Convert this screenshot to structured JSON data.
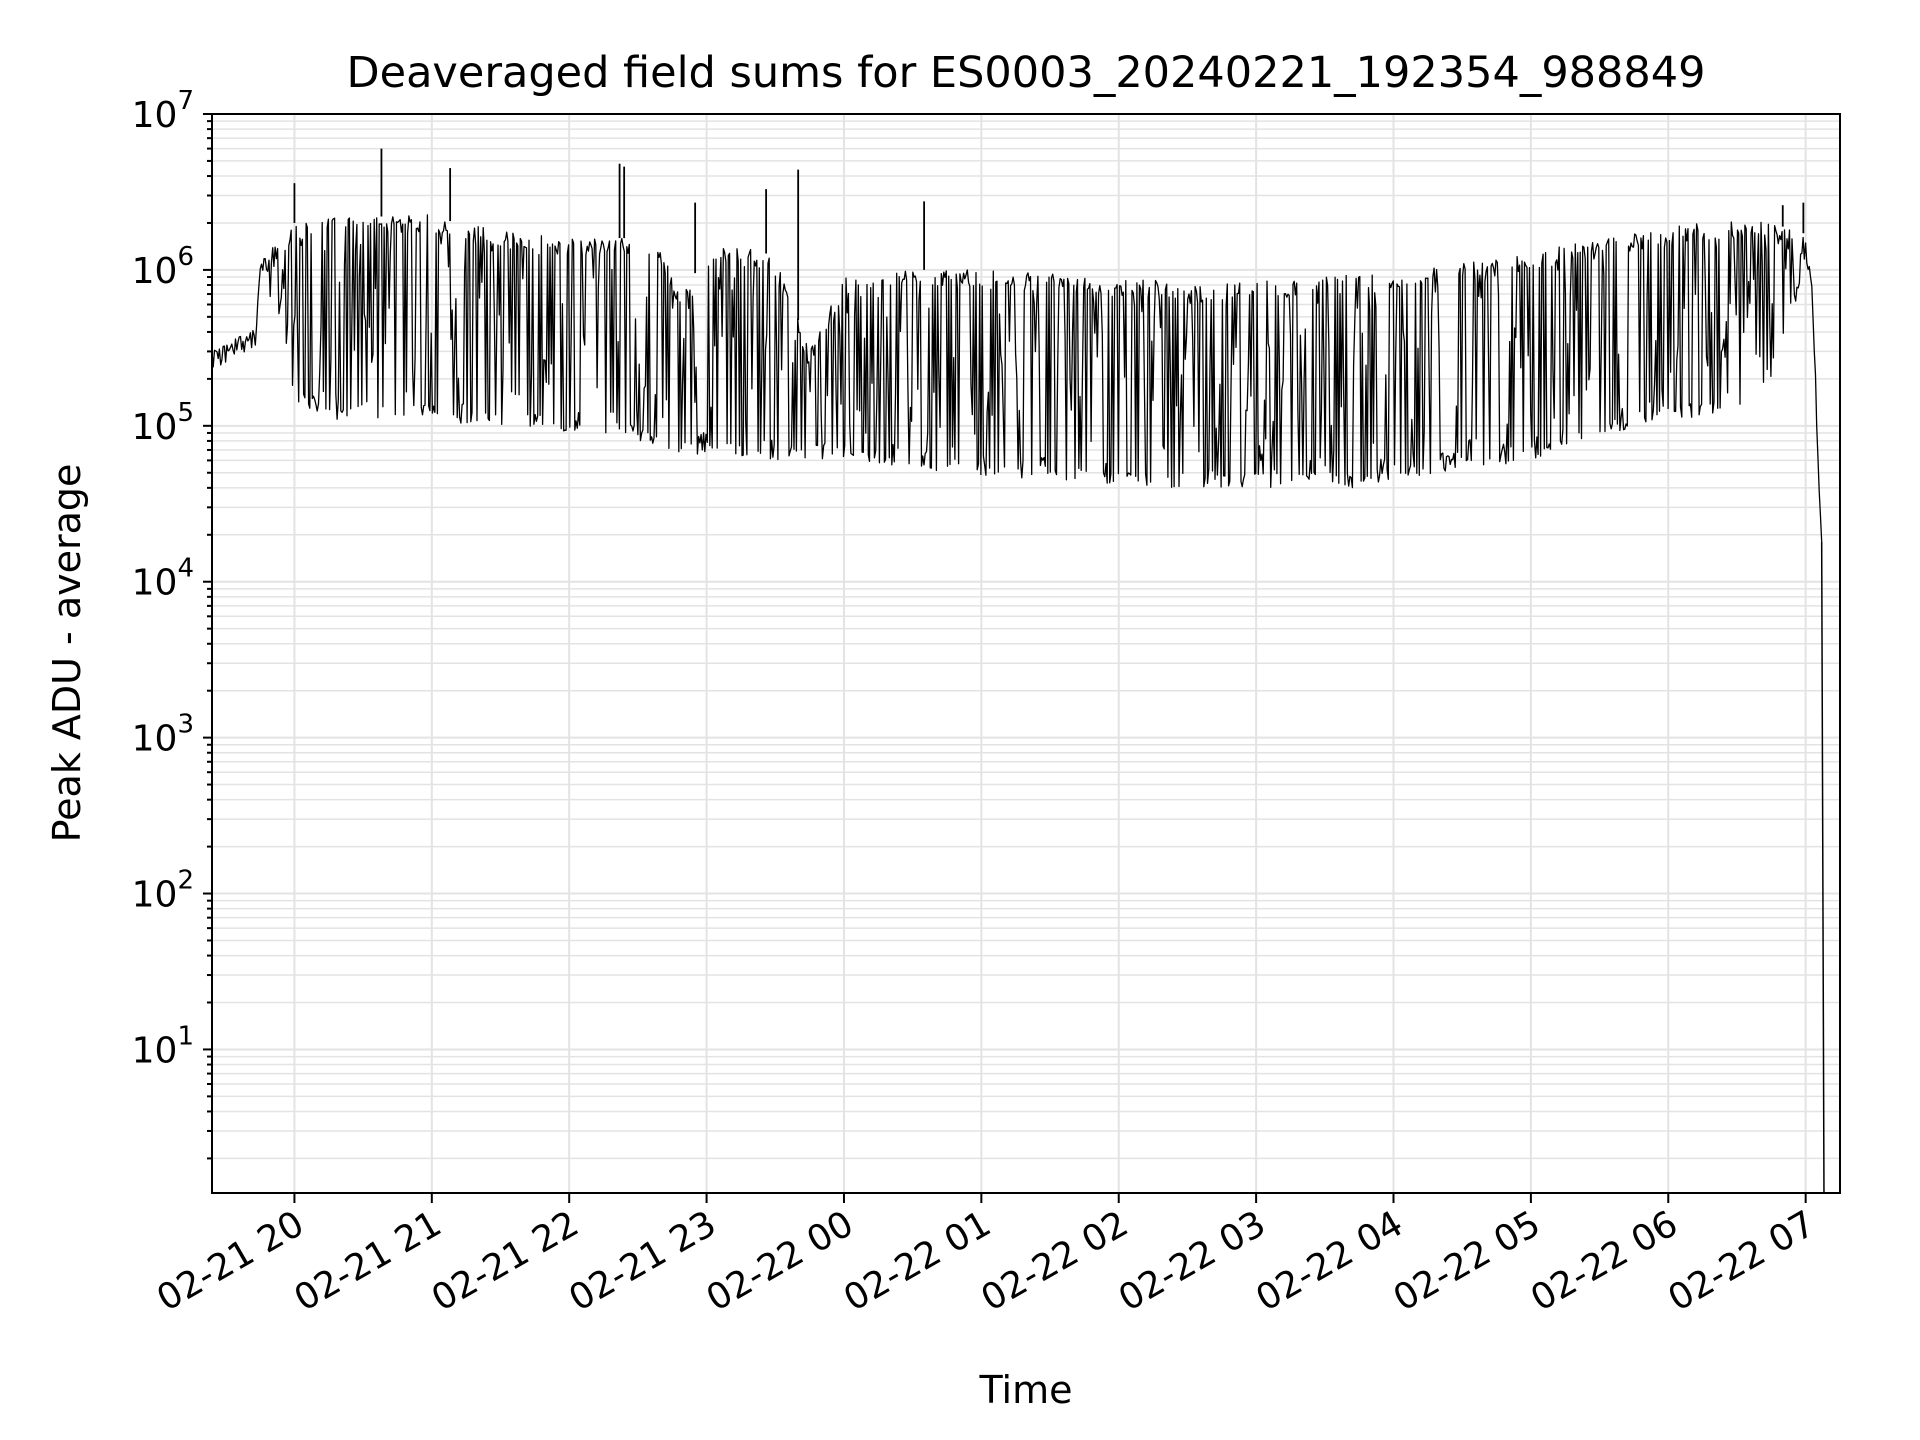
{
  "chart_data": {
    "type": "line",
    "title": "Deaveraged field sums for ES0003_20240221_192354_988849",
    "xlabel": "Time",
    "ylabel": "Peak ADU - average",
    "yscale": "log",
    "ylim": [
      1.2,
      10000000
    ],
    "xlim": [
      "2024-02-21 19:24",
      "2024-02-22 07:15"
    ],
    "grid": true,
    "line_color": "#000000",
    "grid_color": "#e3e3e3",
    "x_tick_labels": [
      "02-21 20",
      "02-21 21",
      "02-21 22",
      "02-21 23",
      "02-22 00",
      "02-22 01",
      "02-22 02",
      "02-22 03",
      "02-22 04",
      "02-22 05",
      "02-22 06",
      "02-22 07"
    ],
    "y_tick_labels": [
      {
        "base": "10",
        "exp": "1"
      },
      {
        "base": "10",
        "exp": "2"
      },
      {
        "base": "10",
        "exp": "3"
      },
      {
        "base": "10",
        "exp": "4"
      },
      {
        "base": "10",
        "exp": "5"
      },
      {
        "base": "10",
        "exp": "6"
      },
      {
        "base": "10",
        "exp": "7"
      }
    ],
    "series": [
      {
        "x": [
          "2024-02-21 19:24",
          "2024-02-21 19:36",
          "2024-02-21 19:43",
          "2024-02-21 19:45",
          "2024-02-21 19:53",
          "2024-02-21 20:00",
          "2024-02-21 20:10",
          "2024-02-21 20:20",
          "2024-02-21 20:30",
          "2024-02-21 20:37",
          "2024-02-21 20:45",
          "2024-02-21 21:00",
          "2024-02-21 21:10",
          "2024-02-21 21:20",
          "2024-02-21 21:30",
          "2024-02-21 21:45",
          "2024-02-21 22:00",
          "2024-02-21 22:15",
          "2024-02-21 22:30",
          "2024-02-21 22:40",
          "2024-02-21 22:50",
          "2024-02-21 23:00",
          "2024-02-21 23:15",
          "2024-02-21 23:30",
          "2024-02-21 23:45",
          "2024-02-22 00:00",
          "2024-02-22 00:15",
          "2024-02-22 00:30",
          "2024-02-22 00:45",
          "2024-02-22 01:00",
          "2024-02-22 01:30",
          "2024-02-22 02:00",
          "2024-02-22 02:20",
          "2024-02-22 02:30",
          "2024-02-22 03:00",
          "2024-02-22 03:30",
          "2024-02-22 03:45",
          "2024-02-22 04:00",
          "2024-02-22 04:30",
          "2024-02-22 05:00",
          "2024-02-22 05:30",
          "2024-02-22 06:00",
          "2024-02-22 06:30",
          "2024-02-22 06:45",
          "2024-02-22 07:00",
          "2024-02-22 07:03",
          "2024-02-22 07:05",
          "2024-02-22 07:07"
        ],
        "upper": [
          300000,
          380000,
          420000,
          1100000,
          1600000,
          2000000,
          2200000,
          2300000,
          2300000,
          2200000,
          2200000,
          2300000,
          2000000,
          1900000,
          1800000,
          1700000,
          1600000,
          1600000,
          1600000,
          1300000,
          700000,
          1300000,
          1500000,
          1200000,
          300000,
          900000,
          1000000,
          1000000,
          1000000,
          1000000,
          950000,
          880000,
          850000,
          800000,
          850000,
          900000,
          950000,
          950000,
          1100000,
          1300000,
          1600000,
          1900000,
          2100000,
          2000000,
          1700000,
          600000,
          80000,
          18000
        ],
        "lower": [
          300000,
          300000,
          350000,
          900000,
          500000,
          130000,
          110000,
          110000,
          130000,
          110000,
          110000,
          110000,
          100000,
          100000,
          95000,
          95000,
          90000,
          90000,
          80000,
          70000,
          65000,
          65000,
          60000,
          60000,
          60000,
          60000,
          55000,
          55000,
          50000,
          48000,
          45000,
          42000,
          40000,
          40000,
          40000,
          40000,
          40000,
          45000,
          50000,
          60000,
          85000,
          110000,
          120000,
          200000,
          1000000,
          600000,
          80000,
          18000
        ],
        "spikes": [
          {
            "x": "2024-02-21 20:00",
            "y": 3600000
          },
          {
            "x": "2024-02-21 20:38",
            "y": 6000000
          },
          {
            "x": "2024-02-21 21:08",
            "y": 4500000
          },
          {
            "x": "2024-02-21 22:22",
            "y": 4800000
          },
          {
            "x": "2024-02-21 22:24",
            "y": 4600000
          },
          {
            "x": "2024-02-21 22:55",
            "y": 2700000
          },
          {
            "x": "2024-02-21 23:26",
            "y": 3300000
          },
          {
            "x": "2024-02-21 23:40",
            "y": 4400000
          },
          {
            "x": "2024-02-22 00:35",
            "y": 2750000
          },
          {
            "x": "2024-02-22 06:50",
            "y": 2600000
          },
          {
            "x": "2024-02-22 06:59",
            "y": 2700000
          }
        ]
      }
    ]
  }
}
